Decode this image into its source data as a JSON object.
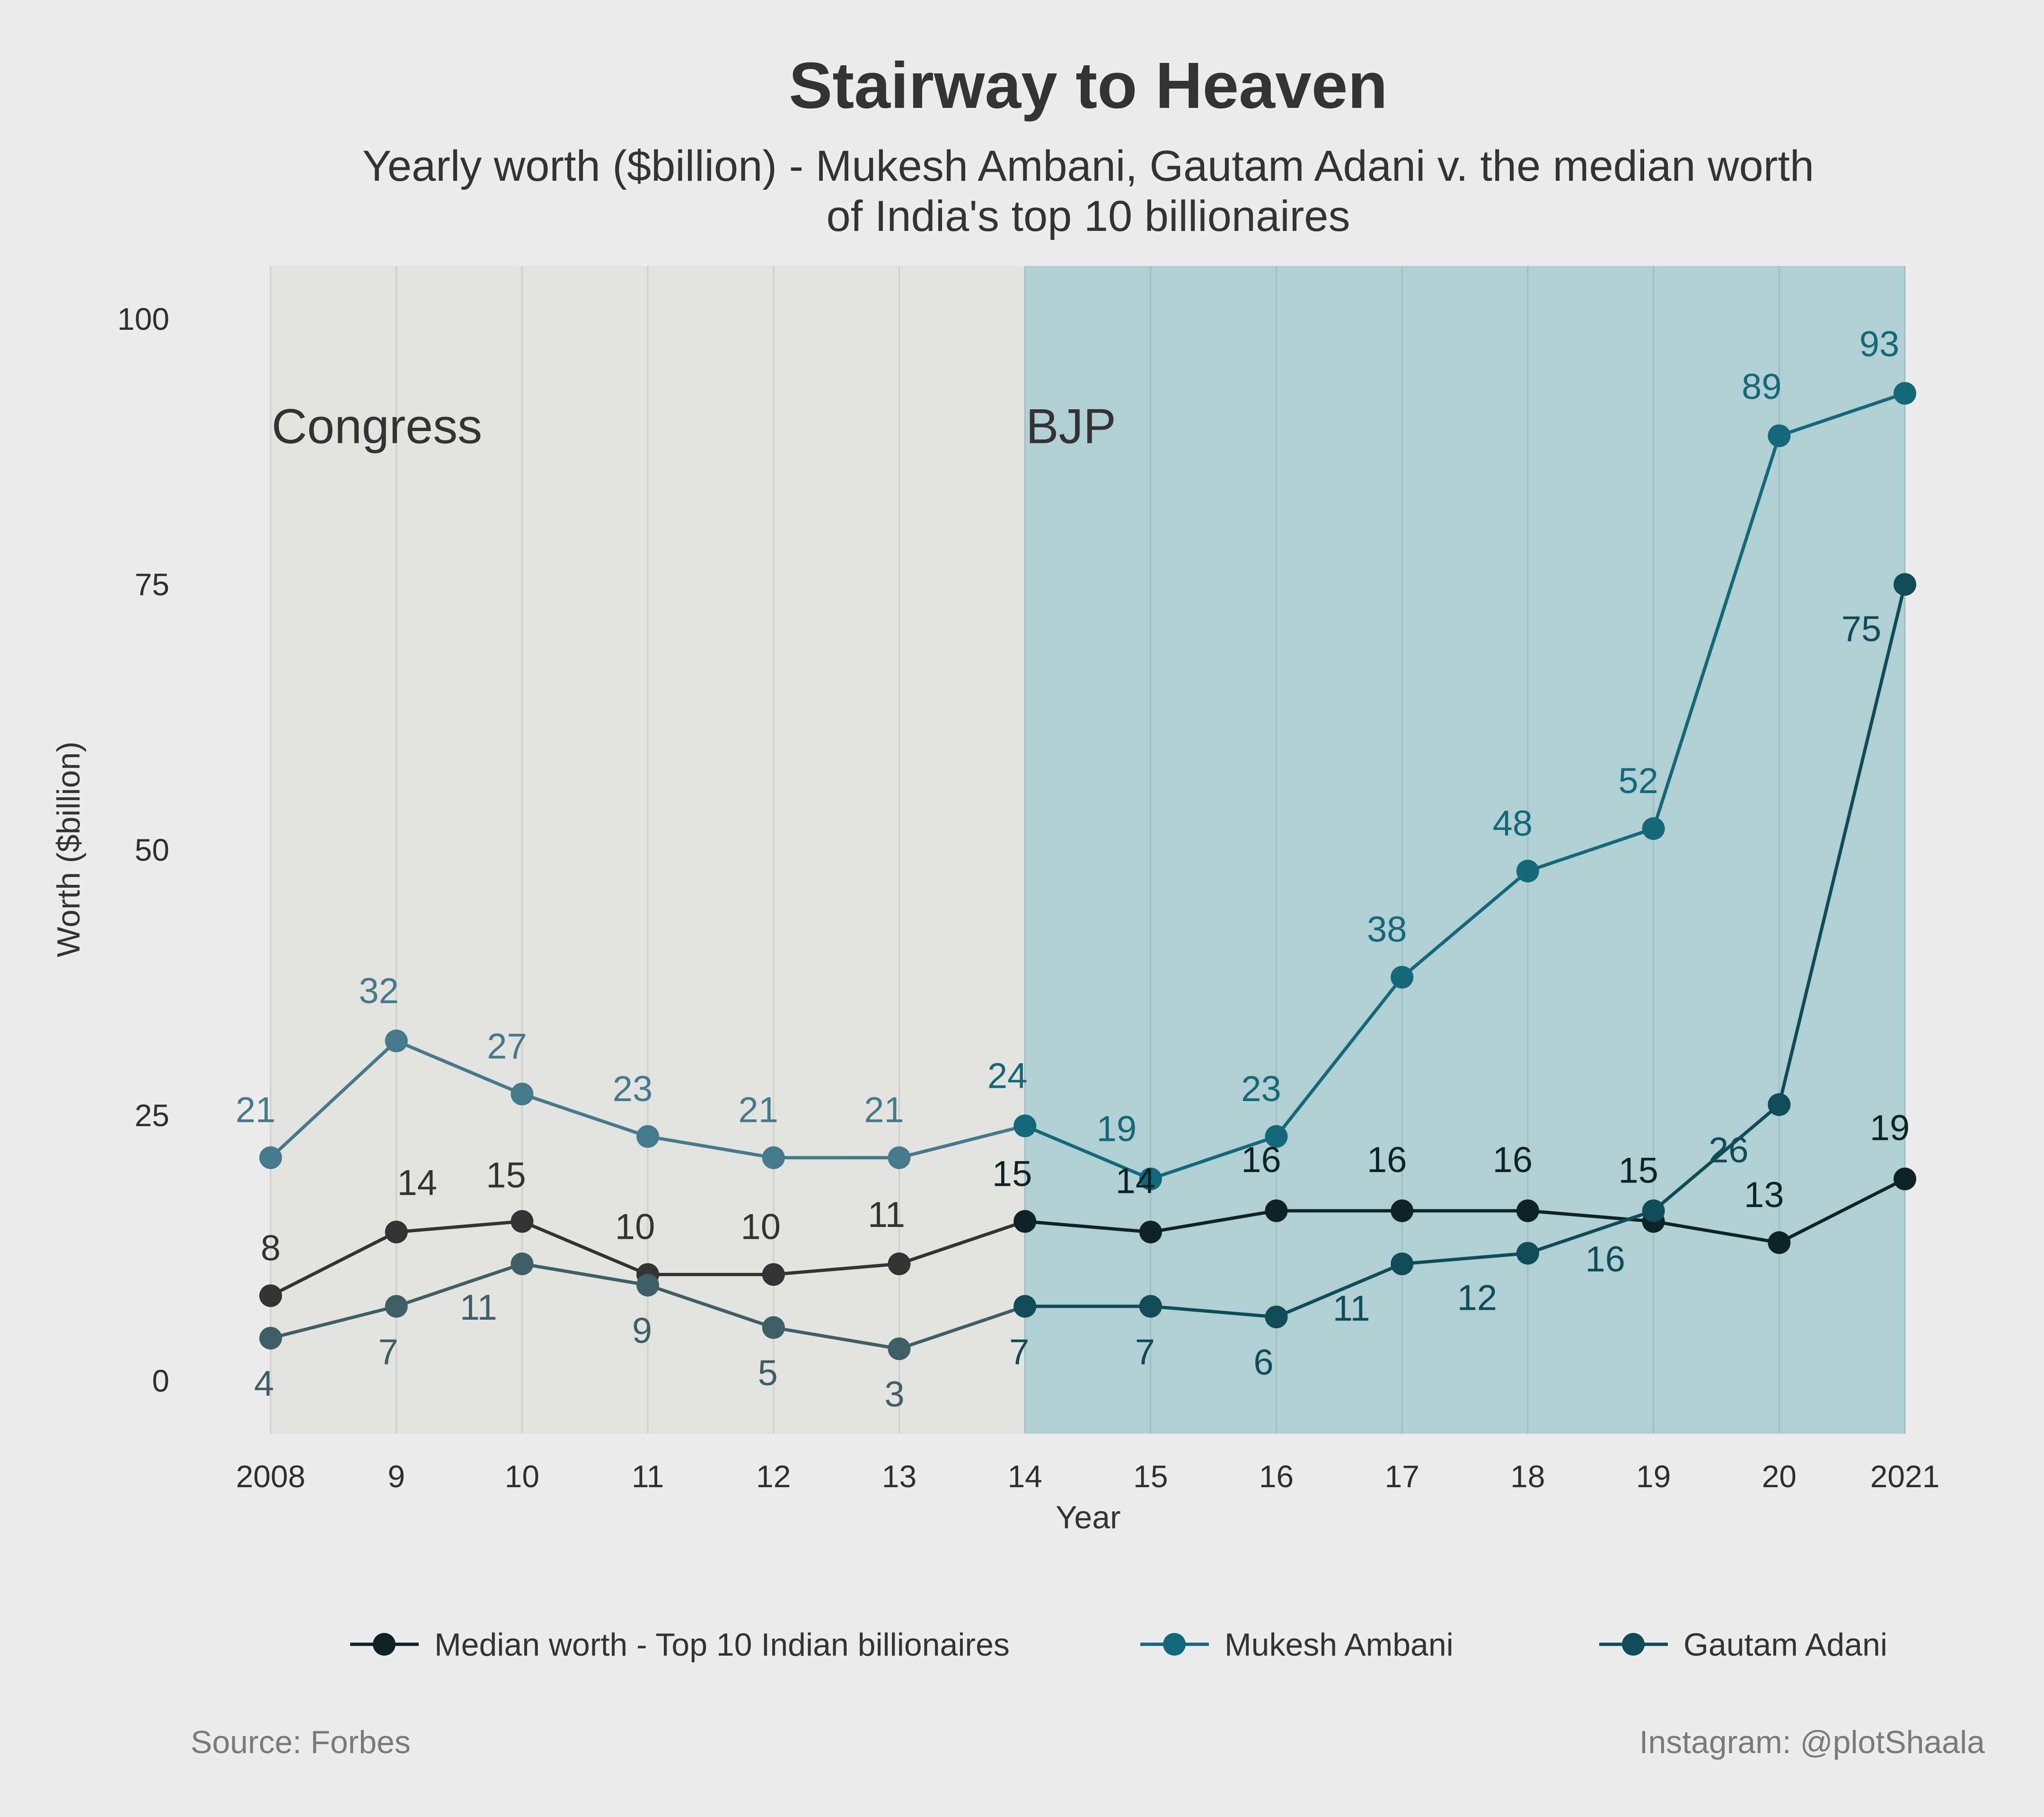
{
  "chart_data": {
    "type": "line",
    "title": "Stairway to Heaven",
    "subtitle_lines": [
      "Yearly worth ($billion) - Mukesh Ambani, Gautam Adani v. the median worth",
      "of India's top 10 billionaires"
    ],
    "xlabel": "Year",
    "ylabel": "Worth ($billion)",
    "x": [
      2008,
      2009,
      2010,
      2011,
      2012,
      2013,
      2014,
      2015,
      2016,
      2017,
      2018,
      2019,
      2020,
      2021
    ],
    "x_tick_labels": [
      "2008",
      "9",
      "10",
      "11",
      "12",
      "13",
      "14",
      "15",
      "16",
      "17",
      "18",
      "19",
      "20",
      "2021"
    ],
    "ylim": [
      -5,
      105
    ],
    "y_ticks": [
      0,
      25,
      50,
      75,
      100
    ],
    "grid": "vertical",
    "legend_position": "bottom",
    "regions": [
      {
        "label": "Congress",
        "x_start": 2008,
        "x_end": 2014,
        "color": "#e3e3df"
      },
      {
        "label": "BJP",
        "x_start": 2014,
        "x_end": 2021,
        "color": "#b1d0d3"
      }
    ],
    "series": [
      {
        "name": "Median worth - Top 10 Indian billionaires",
        "values": [
          8,
          14,
          15,
          10,
          10,
          11,
          15,
          14,
          16,
          16,
          16,
          15,
          13,
          19
        ],
        "color_congress": "#333333",
        "color_bjp": "#0e2326"
      },
      {
        "name": "Mukesh Ambani",
        "values": [
          21,
          32,
          27,
          23,
          21,
          21,
          24,
          19,
          23,
          38,
          48,
          52,
          89,
          93
        ],
        "color_congress": "#447a89",
        "color_bjp": "#13687a"
      },
      {
        "name": "Gautam Adani",
        "values": [
          4,
          7,
          11,
          9,
          5,
          3,
          7,
          7,
          6,
          11,
          12,
          16,
          26,
          75
        ],
        "color_congress": "#3f5f66",
        "color_bjp": "#0e4c58"
      }
    ]
  },
  "caption": {
    "source": "Source: Forbes",
    "credit": "Instagram: @plotShaala"
  }
}
